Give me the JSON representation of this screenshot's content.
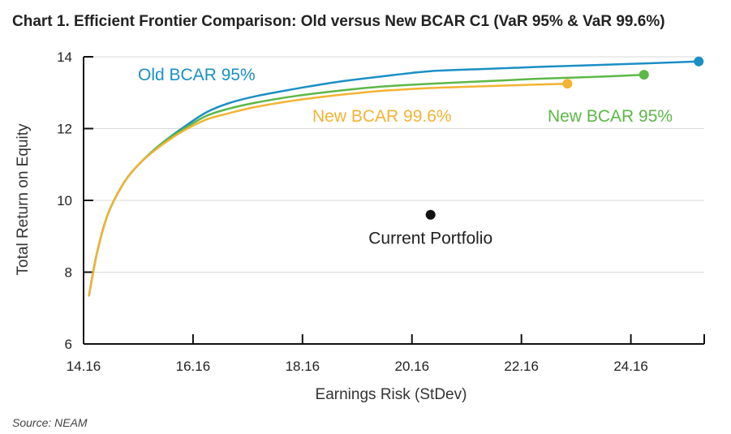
{
  "chart_data": {
    "type": "line",
    "title": "Chart 1. Efficient Frontier Comparison: Old versus New BCAR C1 (VaR 95% & VaR 99.6%)",
    "xlabel": "Earnings Risk (StDev)",
    "ylabel": "Total Return on Equity",
    "xlim": [
      14.16,
      25.5
    ],
    "ylim": [
      6,
      14
    ],
    "xticks": [
      14.16,
      16.16,
      18.16,
      20.16,
      22.16,
      24.16
    ],
    "xtick_labels": [
      "14.16",
      "16.16",
      "18.16",
      "20.16",
      "22.16",
      "24.16"
    ],
    "yticks": [
      6,
      8,
      10,
      12,
      14
    ],
    "ytick_labels": [
      "6",
      "8",
      "10",
      "12",
      "14"
    ],
    "grid": true,
    "series": [
      {
        "name": "Old BCAR 95%",
        "color": "#1b8fc5",
        "x": [
          14.26,
          14.4,
          14.6,
          14.9,
          15.2,
          15.6,
          16.0,
          16.4,
          16.8,
          17.3,
          18.0,
          18.8,
          19.6,
          20.5,
          21.5,
          22.5,
          23.5,
          24.5,
          25.4
        ],
        "y": [
          7.35,
          8.5,
          9.6,
          10.5,
          11.05,
          11.6,
          12.05,
          12.45,
          12.7,
          12.9,
          13.1,
          13.3,
          13.45,
          13.6,
          13.66,
          13.72,
          13.77,
          13.82,
          13.87
        ],
        "end_marker": true
      },
      {
        "name": "New BCAR 95%",
        "color": "#5cb847",
        "x": [
          14.26,
          14.4,
          14.6,
          14.9,
          15.2,
          15.6,
          16.0,
          16.4,
          16.8,
          17.3,
          18.0,
          18.8,
          19.6,
          20.5,
          21.5,
          22.5,
          23.5,
          24.4
        ],
        "y": [
          7.35,
          8.5,
          9.6,
          10.5,
          11.05,
          11.6,
          12.0,
          12.35,
          12.55,
          12.72,
          12.9,
          13.05,
          13.17,
          13.25,
          13.32,
          13.39,
          13.44,
          13.5
        ],
        "end_marker": true
      },
      {
        "name": "New BCAR 99.6%",
        "color": "#f3b333",
        "x": [
          14.26,
          14.4,
          14.6,
          14.9,
          15.2,
          15.6,
          16.0,
          16.4,
          16.8,
          17.3,
          18.0,
          18.8,
          19.6,
          20.5,
          21.5,
          22.3,
          23.0
        ],
        "y": [
          7.35,
          8.5,
          9.6,
          10.5,
          11.05,
          11.55,
          11.95,
          12.25,
          12.42,
          12.6,
          12.78,
          12.93,
          13.05,
          13.13,
          13.18,
          13.22,
          13.25
        ],
        "end_marker": true
      }
    ],
    "annotations": [
      {
        "label": "Current Portfolio",
        "x": 20.5,
        "y": 9.6
      }
    ],
    "source": "Source: NEAM"
  }
}
